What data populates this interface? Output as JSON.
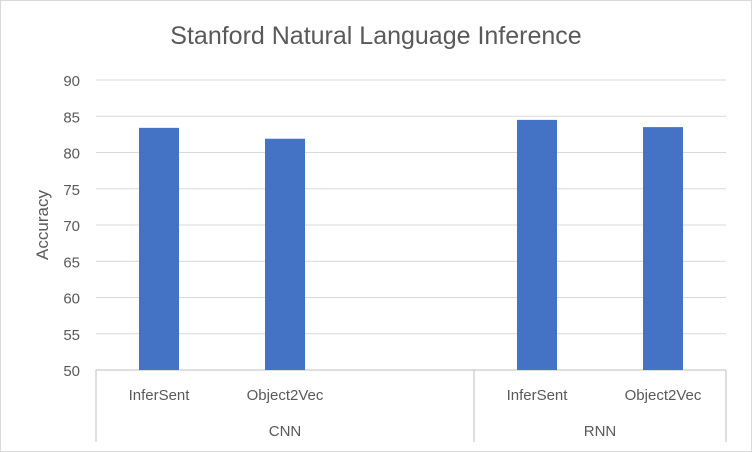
{
  "chart_data": {
    "type": "bar",
    "title": "Stanford Natural Language Inference",
    "xlabel": "",
    "ylabel": "Accuracy",
    "ylim": [
      50,
      90
    ],
    "yticks": [
      50,
      55,
      60,
      65,
      70,
      75,
      80,
      85,
      90
    ],
    "grid": true,
    "legend": "none",
    "groups": [
      {
        "name": "CNN",
        "categories": [
          "InferSent",
          "Object2Vec"
        ],
        "values": [
          83.4,
          81.9
        ]
      },
      {
        "name": "RNN",
        "categories": [
          "InferSent",
          "Object2Vec"
        ],
        "values": [
          84.5,
          83.5
        ]
      }
    ],
    "colors": {
      "bar": "#4472c4",
      "grid": "#d9d9d9",
      "axis": "#bfbfbf",
      "text": "#595959"
    }
  }
}
